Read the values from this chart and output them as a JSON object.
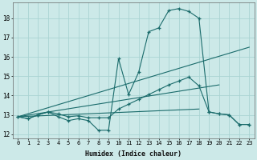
{
  "bg_color": "#cce9e8",
  "grid_color": "#aad4d3",
  "line_color": "#1a6b6b",
  "xlabel": "Humidex (Indice chaleur)",
  "xlim": [
    -0.5,
    23.5
  ],
  "ylim": [
    11.8,
    18.8
  ],
  "yticks": [
    12,
    13,
    14,
    15,
    16,
    17,
    18
  ],
  "xticks": [
    0,
    1,
    2,
    3,
    4,
    5,
    6,
    7,
    8,
    9,
    10,
    11,
    12,
    13,
    14,
    15,
    16,
    17,
    18,
    19,
    20,
    21,
    22,
    23
  ],
  "curve1_x": [
    0,
    1,
    2,
    3,
    4,
    5,
    6,
    7,
    8,
    9,
    10,
    11,
    12,
    13,
    14,
    15,
    16,
    17,
    18,
    19,
    20,
    21,
    22,
    23
  ],
  "curve1_y": [
    12.9,
    12.8,
    13.0,
    13.15,
    12.9,
    12.7,
    12.8,
    12.7,
    12.2,
    12.2,
    15.9,
    14.05,
    15.2,
    17.3,
    17.5,
    18.4,
    18.5,
    18.35,
    18.0,
    13.15,
    13.05,
    13.0,
    12.5,
    12.5
  ],
  "curve2_x": [
    0,
    1,
    2,
    3,
    4,
    5,
    6,
    7,
    8,
    9,
    10,
    11,
    12,
    13,
    14,
    15,
    16,
    17,
    18,
    19,
    20,
    21,
    22,
    23
  ],
  "curve2_y": [
    12.9,
    12.8,
    13.0,
    13.15,
    13.05,
    12.9,
    12.95,
    12.85,
    12.85,
    12.85,
    13.3,
    13.55,
    13.8,
    14.05,
    14.3,
    14.55,
    14.75,
    14.95,
    14.5,
    13.15,
    13.05,
    13.0,
    12.5,
    12.5
  ],
  "line1_x": [
    0,
    23
  ],
  "line1_y": [
    12.9,
    16.5
  ],
  "line2_x": [
    0,
    20
  ],
  "line2_y": [
    12.9,
    14.55
  ],
  "line3_x": [
    0,
    18
  ],
  "line3_y": [
    12.9,
    13.3
  ]
}
